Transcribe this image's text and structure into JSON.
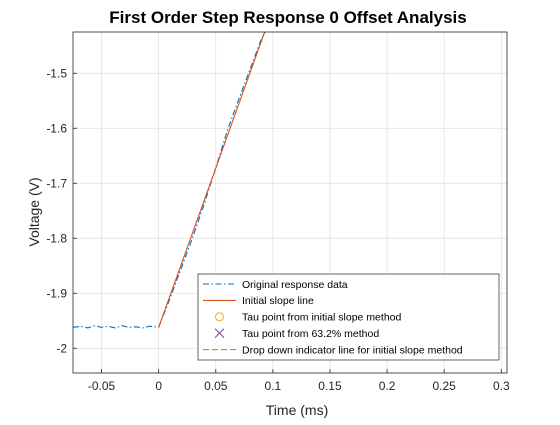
{
  "chart_data": {
    "type": "line",
    "title": "First Order Step Response 0 Offset Analysis",
    "xlabel": "Time (ms)",
    "ylabel": "Voltage (V)",
    "xlim": [
      -0.075,
      0.305
    ],
    "ylim": [
      -2.045,
      -1.425
    ],
    "xticks": [
      -0.05,
      0,
      0.05,
      0.1,
      0.15,
      0.2,
      0.25,
      0.3
    ],
    "xtick_labels": [
      "-0.05",
      "0",
      "0.05",
      "0.1",
      "0.15",
      "0.2",
      "0.25",
      "0.3"
    ],
    "yticks": [
      -2,
      -1.9,
      -1.8,
      -1.7,
      -1.6,
      -1.5
    ],
    "ytick_labels": [
      "-2",
      "-1.9",
      "-1.8",
      "-1.7",
      "-1.6",
      "-1.5"
    ],
    "grid": true,
    "legend_position": "bottom-right",
    "series": [
      {
        "name": "Original response data",
        "color": "#0072BD",
        "style": "dashdot",
        "x": [
          -0.075,
          -0.068,
          -0.062,
          -0.056,
          -0.05,
          -0.044,
          -0.038,
          -0.032,
          -0.026,
          -0.02,
          -0.014,
          -0.008,
          -0.002,
          0,
          0.01,
          0.02,
          0.03,
          0.04,
          0.05,
          0.06,
          0.07,
          0.08,
          0.09,
          0.095
        ],
        "y": [
          -1.962,
          -1.96,
          -1.963,
          -1.959,
          -1.962,
          -1.96,
          -1.963,
          -1.959,
          -1.962,
          -1.961,
          -1.963,
          -1.96,
          -1.961,
          -1.962,
          -1.909,
          -1.853,
          -1.797,
          -1.737,
          -1.672,
          -1.605,
          -1.548,
          -1.493,
          -1.437,
          -1.419
        ]
      },
      {
        "name": "Initial slope line",
        "color": "#D95319",
        "style": "solid",
        "x": [
          0,
          0.094
        ],
        "y": [
          -1.962,
          -1.418
        ]
      },
      {
        "name": "Tau point from initial slope method",
        "color": "#EDB120",
        "style": "marker-circle",
        "x": [],
        "y": []
      },
      {
        "name": "Tau point from 63.2% method",
        "color": "#7E2F8E",
        "style": "marker-x",
        "x": [],
        "y": []
      },
      {
        "name": "Drop down indicator line for initial slope method",
        "color": "#77AC30",
        "style": "dashed",
        "x": [],
        "y": []
      }
    ]
  }
}
